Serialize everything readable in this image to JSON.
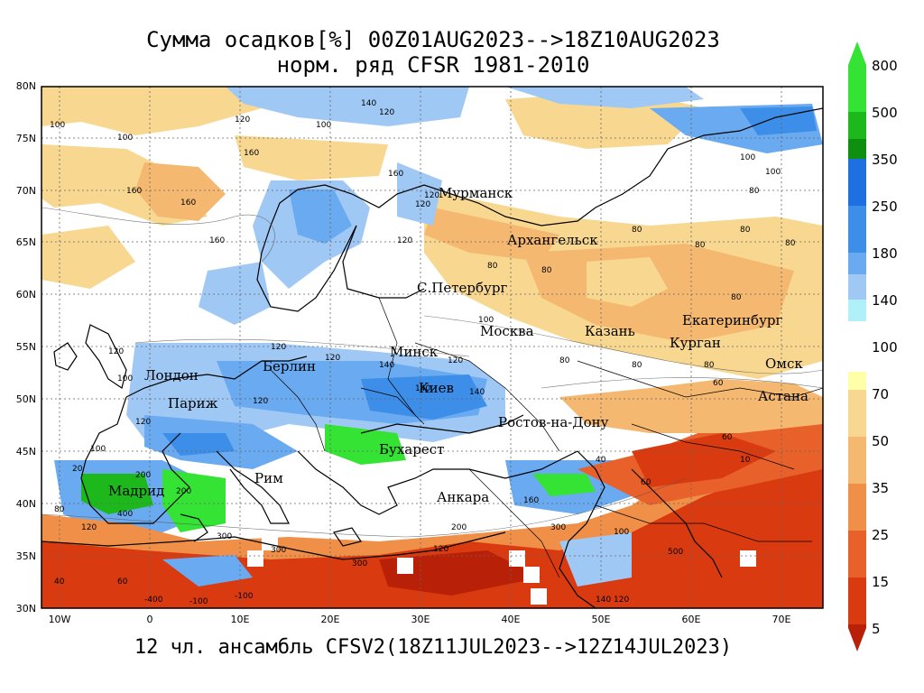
{
  "title": {
    "line1": "Сумма осадков[%] 00Z01AUG2023-->18Z10AUG2023",
    "line2": "норм. ряд CFSR 1981-2010"
  },
  "bottom_caption": "12 чл. ансамбль CFSV2(18Z11JUL2023-->12Z14JUL2023)",
  "lat_labels": [
    "80N",
    "75N",
    "70N",
    "65N",
    "60N",
    "55N",
    "50N",
    "45N",
    "40N",
    "35N",
    "30N"
  ],
  "lon_labels": [
    "10W",
    "0",
    "10E",
    "20E",
    "30E",
    "40E",
    "50E",
    "60E",
    "70E"
  ],
  "colorbar": {
    "levels": [
      "800",
      "500",
      "350",
      "250",
      "180",
      "140",
      "100",
      "70",
      "50",
      "35",
      "25",
      "15",
      "5"
    ],
    "colors": [
      "#34e334",
      "#1cb81c",
      "#0f8f0f",
      "#1e6fe0",
      "#3c8ee8",
      "#6aaaf0",
      "#a0c8f5",
      "#b0f0f8",
      "#ffffa8",
      "#f8d890",
      "#f5b870",
      "#f09048",
      "#e8602a",
      "#d93a10",
      "#b82008"
    ]
  },
  "cities": [
    {
      "name": "Мурманск"
    },
    {
      "name": "Архангельск"
    },
    {
      "name": "С.Петербург"
    },
    {
      "name": "Москва"
    },
    {
      "name": "Казань"
    },
    {
      "name": "Екатеринбург"
    },
    {
      "name": "Курган"
    },
    {
      "name": "Омск"
    },
    {
      "name": "Астана"
    },
    {
      "name": "Минск"
    },
    {
      "name": "Киев"
    },
    {
      "name": "Берлин"
    },
    {
      "name": "Лондон"
    },
    {
      "name": "Париж"
    },
    {
      "name": "Ростов-на-Дону"
    },
    {
      "name": "Бухарест"
    },
    {
      "name": "Рим"
    },
    {
      "name": "Мадрид"
    },
    {
      "name": "Анкара"
    }
  ],
  "contour_labels": [
    "100",
    "120",
    "140",
    "160",
    "80",
    "60",
    "40",
    "20",
    "200",
    "300",
    "400",
    "500",
    "10",
    "-100",
    "-400"
  ],
  "colors": {
    "background": "#ffffff",
    "border": "#000000"
  }
}
